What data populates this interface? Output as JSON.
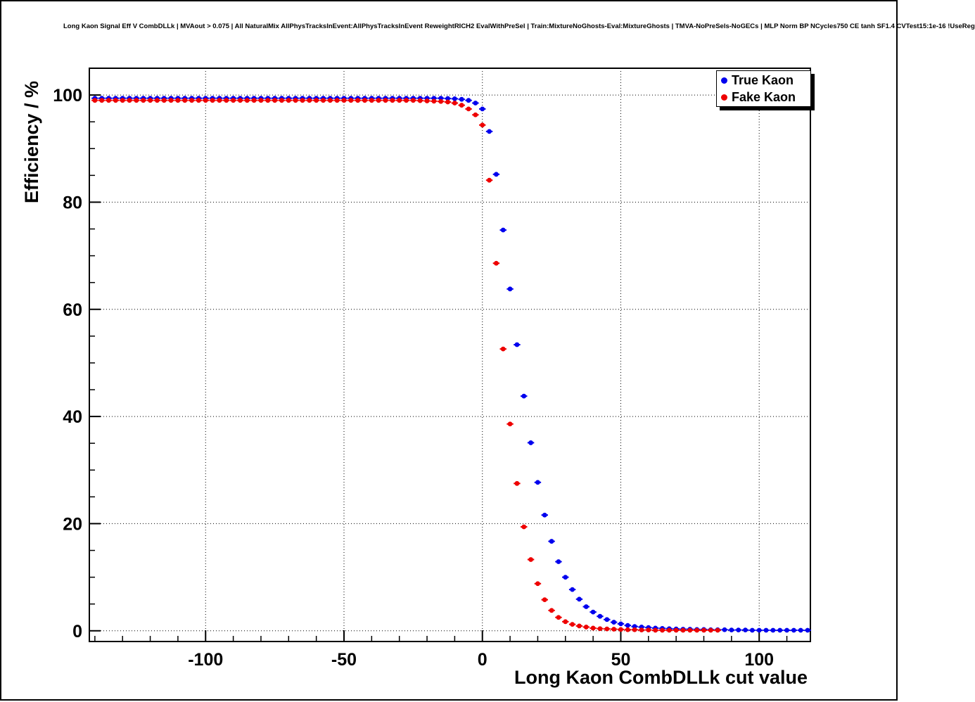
{
  "header": {
    "title": "Long Kaon Signal Eff V CombDLLk | MVAout > 0.075 | All NaturalMix AllPhysTracksInEvent:AllPhysTracksInEvent ReweightRICH2 EvalWithPreSel | Train:MixtureNoGhosts-Eval:MixtureGhosts | TMVA-NoPreSels-NoGECs | MLP Norm BP NCycles750 CE tanh SF1.4 CVTest15:1e-16 !UseReg"
  },
  "chart_data": {
    "type": "scatter",
    "title": "Long Kaon Signal Eff V CombDLLk",
    "xlabel": "Long Kaon CombDLLk cut value",
    "ylabel": "Efficiency / %",
    "xlim": [
      -142,
      118.5
    ],
    "ylim": [
      -2,
      105
    ],
    "xticks_major": [
      -100,
      -50,
      0,
      50,
      100
    ],
    "yticks_major": [
      0,
      20,
      40,
      60,
      80,
      100
    ],
    "xtick_labels": [
      "-100",
      "-50",
      "0",
      "50",
      "100"
    ],
    "ytick_labels": [
      "0",
      "20",
      "40",
      "60",
      "80",
      "100"
    ],
    "minor_x_step": 10,
    "minor_y_step": 5,
    "grid": "dotted",
    "legend_position": "top-right",
    "series": [
      {
        "name": "True Kaon",
        "color": "#0000ee",
        "x": [
          -140,
          -137.5,
          -135,
          -132.5,
          -130,
          -127.5,
          -125,
          -122.5,
          -120,
          -117.5,
          -115,
          -112.5,
          -110,
          -107.5,
          -105,
          -102.5,
          -100,
          -97.5,
          -95,
          -92.5,
          -90,
          -87.5,
          -85,
          -82.5,
          -80,
          -77.5,
          -75,
          -72.5,
          -70,
          -67.5,
          -65,
          -62.5,
          -60,
          -57.5,
          -55,
          -52.5,
          -50,
          -47.5,
          -45,
          -42.5,
          -40,
          -37.5,
          -35,
          -32.5,
          -30,
          -27.5,
          -25,
          -22.5,
          -20,
          -17.5,
          -15,
          -12.5,
          -10,
          -7.5,
          -5,
          -2.5,
          0,
          2.5,
          5,
          7.5,
          10,
          12.5,
          15,
          17.5,
          20,
          22.5,
          25,
          27.5,
          30,
          32.5,
          35,
          37.5,
          40,
          42.5,
          45,
          47.5,
          50,
          52.5,
          55,
          57.5,
          60,
          62.5,
          65,
          67.5,
          70,
          72.5,
          75,
          77.5,
          80,
          82.5,
          85,
          87.5,
          90,
          92.5,
          95,
          97.5,
          100,
          102.5,
          105,
          107.5,
          110,
          112.5,
          115,
          117.5
        ],
        "y": [
          99.4,
          99.4,
          99.4,
          99.4,
          99.4,
          99.4,
          99.4,
          99.4,
          99.4,
          99.4,
          99.4,
          99.4,
          99.4,
          99.4,
          99.4,
          99.4,
          99.4,
          99.4,
          99.4,
          99.4,
          99.4,
          99.4,
          99.4,
          99.4,
          99.4,
          99.4,
          99.4,
          99.4,
          99.4,
          99.4,
          99.4,
          99.4,
          99.4,
          99.4,
          99.4,
          99.4,
          99.4,
          99.4,
          99.4,
          99.4,
          99.4,
          99.4,
          99.4,
          99.4,
          99.4,
          99.4,
          99.4,
          99.4,
          99.4,
          99.4,
          99.4,
          99.35,
          99.3,
          99.2,
          99.0,
          98.5,
          97.4,
          93.2,
          85.2,
          74.8,
          63.8,
          53.4,
          43.8,
          35.1,
          27.7,
          21.6,
          16.7,
          12.9,
          10.0,
          7.7,
          5.9,
          4.5,
          3.5,
          2.7,
          2.1,
          1.6,
          1.3,
          1.0,
          0.8,
          0.7,
          0.6,
          0.5,
          0.45,
          0.4,
          0.35,
          0.3,
          0.3,
          0.25,
          0.25,
          0.2,
          0.2,
          0.2,
          0.15,
          0.15,
          0.15,
          0.1,
          0.1,
          0.1,
          0.1,
          0.1,
          0.1,
          0.1,
          0.1,
          0.1
        ]
      },
      {
        "name": "Fake Kaon",
        "color": "#ee0000",
        "x": [
          -140,
          -137.5,
          -135,
          -132.5,
          -130,
          -127.5,
          -125,
          -122.5,
          -120,
          -117.5,
          -115,
          -112.5,
          -110,
          -107.5,
          -105,
          -102.5,
          -100,
          -97.5,
          -95,
          -92.5,
          -90,
          -87.5,
          -85,
          -82.5,
          -80,
          -77.5,
          -75,
          -72.5,
          -70,
          -67.5,
          -65,
          -62.5,
          -60,
          -57.5,
          -55,
          -52.5,
          -50,
          -47.5,
          -45,
          -42.5,
          -40,
          -37.5,
          -35,
          -32.5,
          -30,
          -27.5,
          -25,
          -22.5,
          -20,
          -17.5,
          -15,
          -12.5,
          -10,
          -7.5,
          -5,
          -2.5,
          0,
          2.5,
          5,
          7.5,
          10,
          12.5,
          15,
          17.5,
          20,
          22.5,
          25,
          27.5,
          30,
          32.5,
          35,
          37.5,
          40,
          42.5,
          45,
          47.5,
          50,
          52.5,
          55,
          57.5,
          60,
          62.5,
          65,
          67.5,
          70,
          72.5,
          75,
          77.5,
          80,
          82.5,
          85
        ],
        "y": [
          99.0,
          99.0,
          99.0,
          99.0,
          99.0,
          99.0,
          99.0,
          99.0,
          99.0,
          99.0,
          99.0,
          99.0,
          99.0,
          99.0,
          99.0,
          99.0,
          99.0,
          99.0,
          99.0,
          99.0,
          99.0,
          99.0,
          99.0,
          99.0,
          99.0,
          99.0,
          99.0,
          99.0,
          99.0,
          99.0,
          99.0,
          99.0,
          99.0,
          99.0,
          99.0,
          99.0,
          99.0,
          99.0,
          99.0,
          99.0,
          99.0,
          99.0,
          99.0,
          99.0,
          99.0,
          99.0,
          99.0,
          98.95,
          98.9,
          98.85,
          98.8,
          98.7,
          98.5,
          98.1,
          97.4,
          96.3,
          94.4,
          84.1,
          68.6,
          52.6,
          38.6,
          27.5,
          19.4,
          13.3,
          8.8,
          5.8,
          3.8,
          2.5,
          1.7,
          1.2,
          0.9,
          0.7,
          0.5,
          0.4,
          0.35,
          0.3,
          0.25,
          0.2,
          0.2,
          0.15,
          0.15,
          0.1,
          0.1,
          0.1,
          0.1,
          0.1,
          0.1,
          0.1,
          0.1,
          0.1,
          0.1
        ]
      }
    ]
  }
}
